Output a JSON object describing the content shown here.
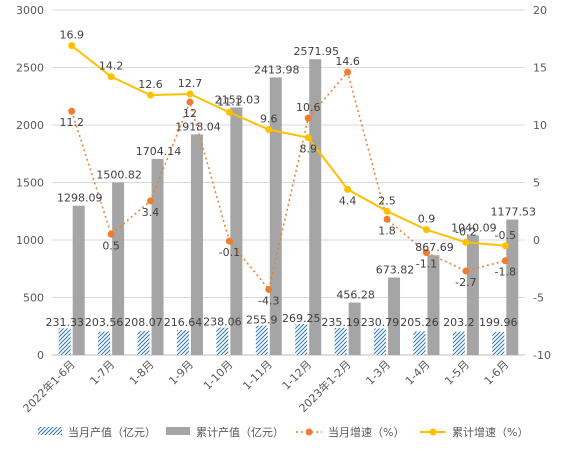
{
  "chart_data": {
    "type": "bar",
    "categories": [
      "2022年1-6月",
      "1-7月",
      "1-8月",
      "1-9月",
      "1-10月",
      "1-11月",
      "1-12月",
      "2023年1-2月",
      "1-3月",
      "1-4月",
      "1-5月",
      "1-6月"
    ],
    "series": [
      {
        "name": "当月产值（亿元）",
        "type": "bar",
        "axis": "left",
        "pattern": "diagonal-hatch",
        "color": "#2E75B6",
        "values": [
          231.33,
          203.56,
          208.07,
          216.64,
          238.06,
          255.9,
          269.25,
          235.19,
          230.79,
          205.26,
          203.2,
          199.96
        ],
        "labels": [
          "231.33",
          "203.56",
          "208.07",
          "216.64",
          "238.06",
          "255.9",
          "269.25",
          "235.19",
          "230.79",
          "205.26",
          "203.2",
          "199.96"
        ]
      },
      {
        "name": "累计产值（亿元）",
        "type": "bar",
        "axis": "left",
        "color": "#A5A5A5",
        "values": [
          1298.09,
          1500.82,
          1704.14,
          1918.04,
          2153.03,
          2413.98,
          2571.95,
          456.28,
          673.82,
          867.69,
          1040.09,
          1177.53
        ],
        "labels": [
          "1298.09",
          "1500.82",
          "1704.14",
          "1918.04",
          "2153.03",
          "2413.98",
          "2571.95",
          "456.28",
          "673.82",
          "867.69",
          "1040.09",
          "1177.53"
        ]
      },
      {
        "name": "当月增速（%）",
        "type": "line",
        "axis": "right",
        "style": "dotted",
        "color": "#ED7D31",
        "values": [
          11.2,
          0.5,
          3.4,
          12,
          -0.1,
          -4.3,
          10.6,
          14.6,
          1.8,
          -1.1,
          -2.7,
          -1.8
        ],
        "labels": [
          "11.2",
          "0.5",
          "3.4",
          "12",
          "-0.1",
          "-4.3",
          "10.6",
          "14.6",
          "1.8",
          "-1.1",
          "-2.7",
          "-1.8"
        ]
      },
      {
        "name": "累计增速（%）",
        "type": "line",
        "axis": "right",
        "style": "solid",
        "color": "#FFC000",
        "values": [
          16.9,
          14.2,
          12.6,
          12.7,
          11.1,
          9.6,
          8.9,
          4.4,
          2.5,
          0.9,
          -0.2,
          -0.5
        ],
        "labels": [
          "16.9",
          "14.2",
          "12.6",
          "12.7",
          "11.1",
          "9.6",
          "8.9",
          "4.4",
          "2.5",
          "0.9",
          "-0.2",
          "-0.5"
        ]
      }
    ],
    "y_left": {
      "ylim": [
        0,
        3000
      ],
      "ticks": [
        "0",
        "500",
        "1000",
        "1500",
        "2000",
        "2500",
        "3000"
      ]
    },
    "y_right": {
      "ylim": [
        -10,
        20
      ],
      "ticks": [
        "-10",
        "-5",
        "0",
        "5",
        "10",
        "15",
        "20"
      ]
    },
    "title": "",
    "grid": "horizontal",
    "legend_position": "bottom"
  }
}
